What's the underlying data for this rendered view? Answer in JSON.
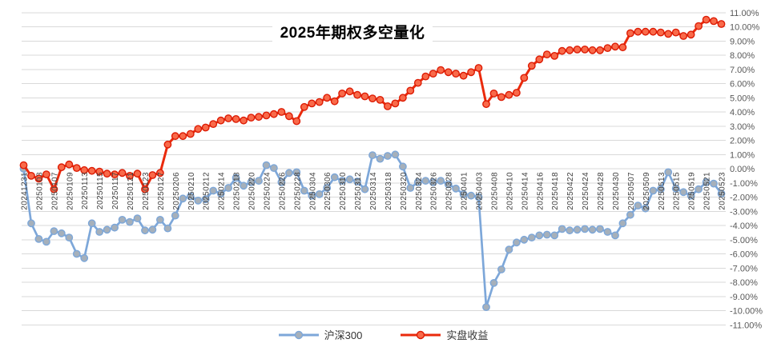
{
  "chart_title": "2025年期权多空量化",
  "colors": {
    "grid": "#d9d9d9",
    "y_tick_label": "#595959",
    "x_tick_label": "#3f3f3f",
    "title": "#000000",
    "background": "#ffffff"
  },
  "y_axis_labels": [
    "11.00%",
    "10.00%",
    "9.00%",
    "8.00%",
    "7.00%",
    "6.00%",
    "5.00%",
    "4.00%",
    "3.00%",
    "2.00%",
    "1.00%",
    "0.00%",
    "-1.00%",
    "-2.00%",
    "-3.00%",
    "-4.00%",
    "-5.00%",
    "-6.00%",
    "-7.00%",
    "-8.00%",
    "-9.00%",
    "-10.00%",
    "-11.00%"
  ],
  "chart_data": {
    "type": "line",
    "title": "2025年期权多空量化",
    "xlabel": "",
    "ylabel": "",
    "ylim": [
      -11,
      11
    ],
    "y_tick_step": 1,
    "y_tick_format": "0.00%",
    "grid": true,
    "legend_position": "bottom",
    "x_label_every": 2,
    "x": [
      "20241231",
      "20250102",
      "20250103",
      "20250106",
      "20250107",
      "20250108",
      "20250109",
      "20250110",
      "20250113",
      "20250114",
      "20250115",
      "20250116",
      "20250117",
      "20250120",
      "20250121",
      "20250122",
      "20250123",
      "20250124",
      "20250127",
      "20250205",
      "20250206",
      "20250207",
      "20250210",
      "20250211",
      "20250212",
      "20250213",
      "20250214",
      "20250217",
      "20250218",
      "20250219",
      "20250220",
      "20250221",
      "20250224",
      "20250225",
      "20250226",
      "20250227",
      "20250228",
      "20250303",
      "20250304",
      "20250305",
      "20250306",
      "20250307",
      "20250310",
      "20250311",
      "20250312",
      "20250313",
      "20250314",
      "20250317",
      "20250318",
      "20250319",
      "20250320",
      "20250321",
      "20250324",
      "20250325",
      "20250326",
      "20250327",
      "20250328",
      "20250331",
      "20250401",
      "20250402",
      "20250403",
      "20250407",
      "20250408",
      "20250409",
      "20250410",
      "20250411",
      "20250414",
      "20250415",
      "20250416",
      "20250417",
      "20250418",
      "20250421",
      "20250422",
      "20250423",
      "20250424",
      "20250425",
      "20250428",
      "20250429",
      "20250430",
      "20250506",
      "20250507",
      "20250508",
      "20250509",
      "20250512",
      "20250513",
      "20250514",
      "20250515",
      "20250516",
      "20250519",
      "20250520",
      "20250521",
      "20250522",
      "20250523"
    ],
    "series": [
      {
        "name": "沪深300",
        "color": "#7da7d9",
        "marker_fill": "#a6b0ba",
        "marker_stroke": "#7da7d9",
        "values": [
          0,
          -3.85,
          -4.95,
          -5.15,
          -4.4,
          -4.55,
          -4.85,
          -6.0,
          -6.3,
          -3.85,
          -4.45,
          -4.3,
          -4.15,
          -3.6,
          -3.75,
          -3.5,
          -4.35,
          -4.3,
          -3.6,
          -4.2,
          -3.3,
          -2.1,
          -1.95,
          -2.25,
          -2.15,
          -1.55,
          -1.75,
          -1.35,
          -0.65,
          -1.2,
          -0.95,
          -0.85,
          0.25,
          0.05,
          -0.95,
          -0.3,
          -0.25,
          -1.55,
          -1.9,
          -1.8,
          -1.35,
          -0.6,
          -0.85,
          -0.75,
          -0.9,
          -1.45,
          0.95,
          0.7,
          0.9,
          1.0,
          0.15,
          -1.35,
          -0.95,
          -0.85,
          -0.95,
          -0.85,
          -1.1,
          -1.4,
          -1.8,
          -1.9,
          -2.0,
          -9.75,
          -8.05,
          -7.1,
          -5.7,
          -5.2,
          -5.0,
          -4.85,
          -4.7,
          -4.65,
          -4.7,
          -4.25,
          -4.35,
          -4.3,
          -4.25,
          -4.3,
          -4.25,
          -4.45,
          -4.7,
          -3.85,
          -3.25,
          -2.6,
          -2.8,
          -1.55,
          -1.45,
          -0.25,
          -1.4,
          -1.65,
          -1.9,
          -1.45,
          -0.95,
          -1.05,
          -1.75
        ]
      },
      {
        "name": "实盘收益",
        "color": "#ea2a0c",
        "marker_fill": "#f96a4a",
        "marker_stroke": "#dd1c05",
        "values": [
          0.25,
          -0.5,
          -0.7,
          -0.4,
          -1.45,
          0.1,
          0.3,
          0.05,
          -0.1,
          -0.15,
          -0.2,
          -0.35,
          -0.4,
          -0.3,
          -0.5,
          -0.35,
          -1.45,
          -0.45,
          -0.3,
          1.7,
          2.3,
          2.3,
          2.45,
          2.8,
          2.9,
          3.15,
          3.4,
          3.55,
          3.5,
          3.4,
          3.6,
          3.65,
          3.75,
          3.85,
          4.0,
          3.7,
          3.35,
          4.35,
          4.6,
          4.7,
          5.0,
          4.75,
          5.3,
          5.45,
          5.2,
          5.1,
          4.95,
          4.85,
          4.4,
          4.6,
          5.0,
          5.5,
          6.05,
          6.5,
          6.7,
          6.95,
          6.8,
          6.7,
          6.55,
          6.8,
          7.1,
          4.55,
          5.3,
          5.05,
          5.2,
          5.35,
          6.4,
          7.25,
          7.7,
          8.05,
          7.95,
          8.3,
          8.35,
          8.4,
          8.4,
          8.35,
          8.35,
          8.5,
          8.6,
          8.55,
          9.55,
          9.65,
          9.65,
          9.65,
          9.6,
          9.5,
          9.6,
          9.35,
          9.45,
          10.05,
          10.5,
          10.4,
          10.2
        ]
      }
    ]
  }
}
